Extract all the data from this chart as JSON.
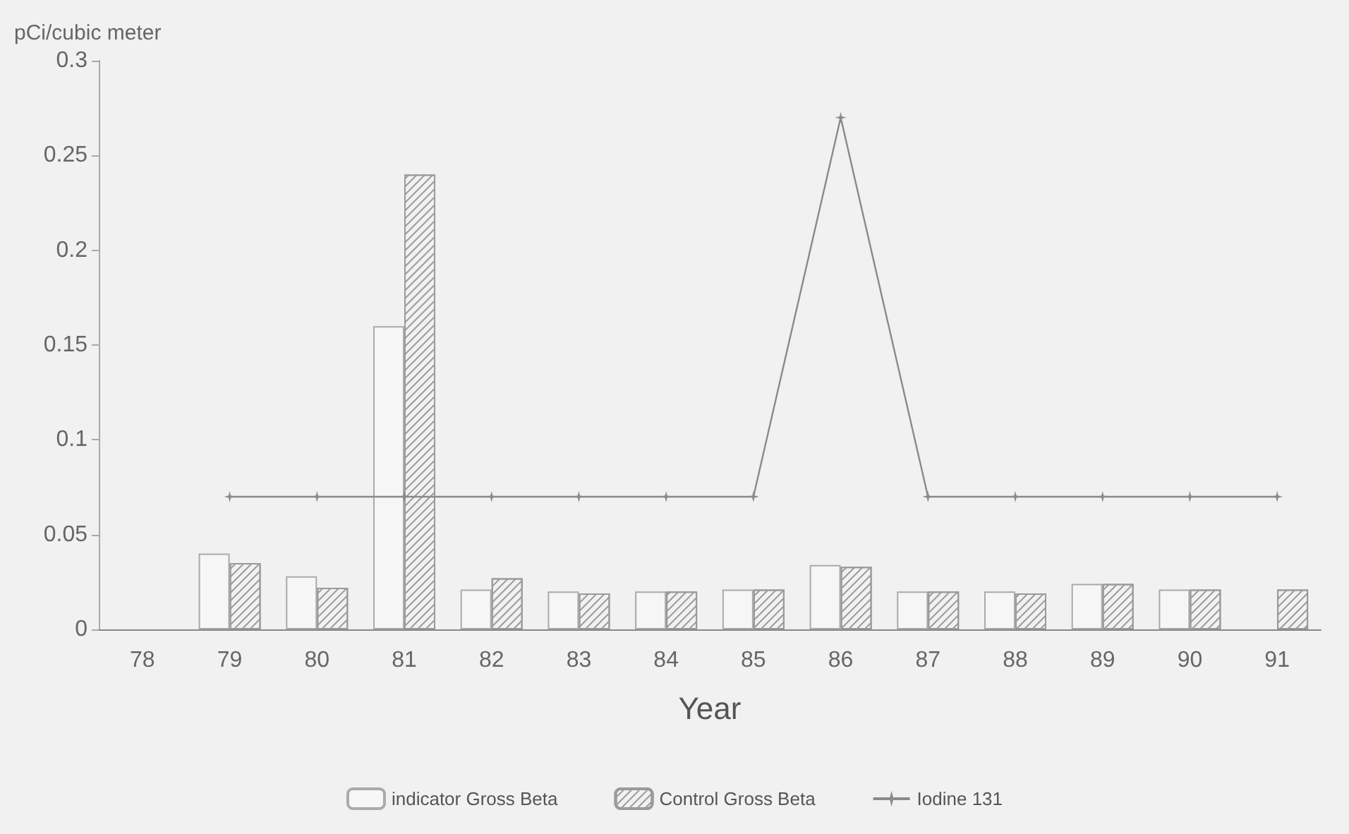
{
  "chart_data": {
    "type": "bar",
    "xlabel": "Year",
    "ylabel": "pCi/cubic meter",
    "categories": [
      "78",
      "79",
      "80",
      "81",
      "82",
      "83",
      "84",
      "85",
      "86",
      "87",
      "88",
      "89",
      "90",
      "91"
    ],
    "series": [
      {
        "name": "indicator Gross Beta",
        "color": "#ffffff",
        "values": [
          null,
          0.04,
          0.028,
          0.16,
          0.021,
          0.02,
          0.02,
          0.021,
          0.034,
          0.02,
          0.02,
          0.024,
          0.021,
          null
        ]
      },
      {
        "name": "Control Gross Beta",
        "color": "#9a9a9a",
        "values": [
          null,
          0.035,
          0.022,
          0.24,
          0.027,
          0.019,
          0.02,
          0.021,
          0.033,
          0.02,
          0.019,
          0.024,
          0.021,
          0.021
        ]
      },
      {
        "name": "Iodine 131",
        "type": "line",
        "color": "#8a8a8a",
        "values": [
          null,
          0.07,
          0.07,
          0.07,
          0.07,
          0.07,
          0.07,
          0.07,
          0.27,
          0.07,
          0.07,
          0.07,
          0.07,
          0.07
        ]
      }
    ],
    "ylim": [
      0,
      0.3
    ],
    "yticks": [
      0,
      0.05,
      0.1,
      0.15,
      0.2,
      0.25,
      0.3
    ],
    "grid": false,
    "legend": "bottom",
    "marker": "star",
    "line_style": "solid"
  }
}
